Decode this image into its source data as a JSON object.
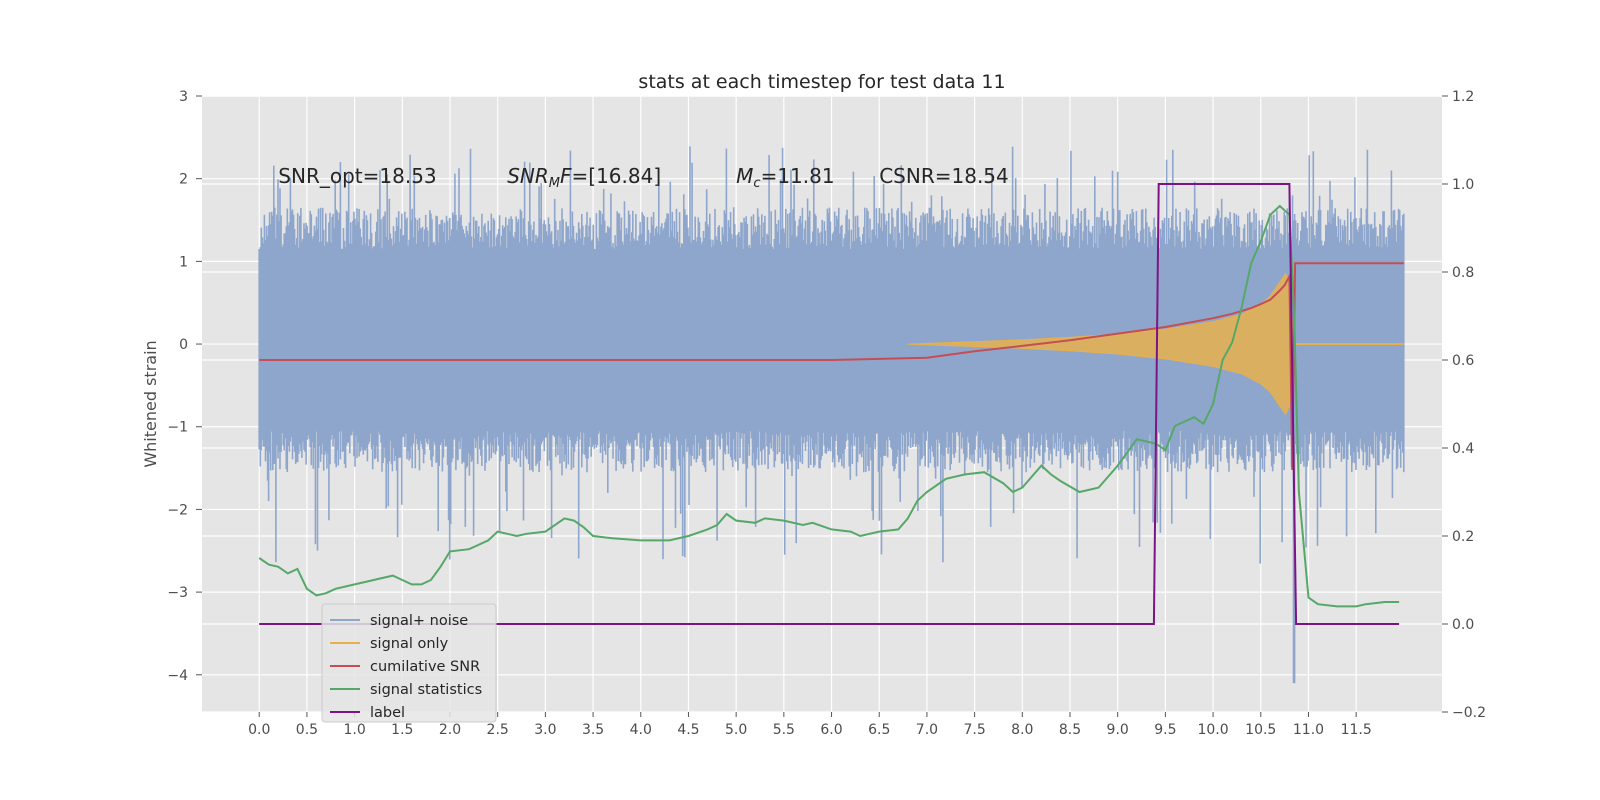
{
  "chart_data": {
    "type": "line",
    "title": "stats at each timestep for test data 11",
    "ylabel": "Whitened strain",
    "xlabel": "",
    "xlim": [
      -0.6,
      12.4
    ],
    "ylim": [
      -4.45,
      3.0
    ],
    "y2lim": [
      -0.2,
      1.2
    ],
    "x_ticks": [
      0.0,
      0.5,
      1.0,
      1.5,
      2.0,
      2.5,
      3.0,
      3.5,
      4.0,
      4.5,
      5.0,
      5.5,
      6.0,
      6.5,
      7.0,
      7.5,
      8.0,
      8.5,
      9.0,
      9.5,
      10.0,
      10.5,
      11.0,
      11.5
    ],
    "x_tick_labels": [
      "0.0",
      "0.5",
      "1.0",
      "1.5",
      "2.0",
      "2.5",
      "3.0",
      "3.5",
      "4.0",
      "4.5",
      "5.0",
      "5.5",
      "6.0",
      "6.5",
      "7.0",
      "7.5",
      "8.0",
      "8.5",
      "9.0",
      "9.5",
      "10.0",
      "10.5",
      "11.0",
      "11.5"
    ],
    "y_ticks": [
      3,
      2,
      1,
      0,
      -1,
      -2,
      -3,
      -4
    ],
    "y_tick_labels": [
      "3",
      "2",
      "1",
      "0",
      "−1",
      "−2",
      "−3",
      "−4"
    ],
    "y2_ticks": [
      1.2,
      1.0,
      0.8,
      0.6,
      0.4,
      0.2,
      0.0,
      -0.2
    ],
    "y2_tick_labels": [
      "1.2",
      "1.0",
      "0.8",
      "0.6",
      "0.4",
      "0.2",
      "0.0",
      "−0.2"
    ],
    "grid": true,
    "legend_position": "lower-left",
    "annotations": [
      {
        "prefix": "SNR_opt=18.53",
        "x": 0.2,
        "y": 1.95
      },
      {
        "prefix": "SNR",
        "sub": "M",
        "suffix": "F=[16.84]",
        "x": 2.6,
        "y": 1.95
      },
      {
        "prefix": "M",
        "sub": "c",
        "suffix": "=11.81",
        "x": 5.0,
        "y": 1.95
      },
      {
        "prefix": "CSNR=18.54",
        "x": 6.5,
        "y": 1.95
      }
    ],
    "series": [
      {
        "name": "signal+ noise",
        "color": "#8fa6cc",
        "axis": "left",
        "style": "noise band",
        "x_range": [
          0.0,
          12.0
        ],
        "typical_envelope": [
          -1.4,
          1.5
        ],
        "extremes": [
          -2.7,
          2.4
        ],
        "spike_at": 10.85,
        "spike_min": -4.1
      },
      {
        "name": "signal only",
        "color": "#e8b04c",
        "axis": "left",
        "style": "chirp envelope",
        "amplitude": [
          [
            6.8,
            0.0
          ],
          [
            7.5,
            0.03
          ],
          [
            8.0,
            0.05
          ],
          [
            8.5,
            0.08
          ],
          [
            9.0,
            0.12
          ],
          [
            9.5,
            0.18
          ],
          [
            10.0,
            0.27
          ],
          [
            10.3,
            0.36
          ],
          [
            10.5,
            0.48
          ],
          [
            10.6,
            0.58
          ],
          [
            10.7,
            0.75
          ],
          [
            10.76,
            0.85
          ],
          [
            10.8,
            0.75
          ],
          [
            10.83,
            0.3
          ],
          [
            10.86,
            0.0
          ]
        ]
      },
      {
        "name": "cumilative SNR",
        "color": "#c44e52",
        "axis": "right",
        "x": [
          0.0,
          6.0,
          7.0,
          7.5,
          8.0,
          8.5,
          9.0,
          9.5,
          10.0,
          10.2,
          10.4,
          10.5,
          10.6,
          10.7,
          10.75,
          10.8,
          10.83,
          10.86,
          12.0
        ],
        "y": [
          0.6,
          0.6,
          0.605,
          0.62,
          0.632,
          0.645,
          0.66,
          0.675,
          0.695,
          0.705,
          0.718,
          0.727,
          0.737,
          0.758,
          0.77,
          0.79,
          0.35,
          0.82,
          0.82
        ]
      },
      {
        "name": "signal statistics",
        "color": "#55a868",
        "axis": "right",
        "x": [
          0.0,
          0.1,
          0.2,
          0.3,
          0.4,
          0.5,
          0.6,
          0.7,
          0.8,
          1.0,
          1.2,
          1.4,
          1.5,
          1.6,
          1.7,
          1.8,
          1.9,
          2.0,
          2.2,
          2.4,
          2.5,
          2.6,
          2.7,
          2.8,
          3.0,
          3.2,
          3.3,
          3.4,
          3.5,
          3.7,
          4.0,
          4.3,
          4.5,
          4.7,
          4.8,
          4.9,
          5.0,
          5.2,
          5.3,
          5.5,
          5.7,
          5.8,
          6.0,
          6.2,
          6.3,
          6.5,
          6.7,
          6.8,
          6.9,
          7.0,
          7.2,
          7.4,
          7.6,
          7.8,
          7.9,
          8.0,
          8.2,
          8.3,
          8.4,
          8.6,
          8.8,
          9.0,
          9.2,
          9.4,
          9.5,
          9.6,
          9.7,
          9.8,
          9.9,
          10.0,
          10.1,
          10.2,
          10.3,
          10.4,
          10.5,
          10.6,
          10.7,
          10.8,
          10.85,
          10.9,
          11.0,
          11.1,
          11.3,
          11.5,
          11.6,
          11.8,
          11.95
        ],
        "y": [
          0.15,
          0.135,
          0.13,
          0.115,
          0.125,
          0.08,
          0.065,
          0.07,
          0.08,
          0.09,
          0.1,
          0.11,
          0.1,
          0.09,
          0.09,
          0.1,
          0.13,
          0.165,
          0.17,
          0.19,
          0.21,
          0.205,
          0.2,
          0.205,
          0.21,
          0.24,
          0.235,
          0.22,
          0.2,
          0.195,
          0.19,
          0.19,
          0.2,
          0.215,
          0.225,
          0.25,
          0.235,
          0.23,
          0.24,
          0.235,
          0.225,
          0.23,
          0.215,
          0.21,
          0.2,
          0.21,
          0.215,
          0.24,
          0.28,
          0.3,
          0.33,
          0.34,
          0.345,
          0.32,
          0.3,
          0.31,
          0.36,
          0.34,
          0.325,
          0.3,
          0.31,
          0.36,
          0.42,
          0.41,
          0.395,
          0.45,
          0.46,
          0.47,
          0.455,
          0.5,
          0.6,
          0.64,
          0.72,
          0.82,
          0.87,
          0.93,
          0.95,
          0.93,
          0.7,
          0.3,
          0.06,
          0.045,
          0.04,
          0.04,
          0.045,
          0.05,
          0.05
        ]
      },
      {
        "name": "label",
        "color": "#7b1486",
        "axis": "right",
        "x": [
          0.0,
          9.38,
          9.43,
          10.8,
          10.87,
          11.95
        ],
        "y": [
          0.0,
          0.0,
          1.0,
          1.0,
          0.0,
          0.0
        ]
      }
    ]
  }
}
